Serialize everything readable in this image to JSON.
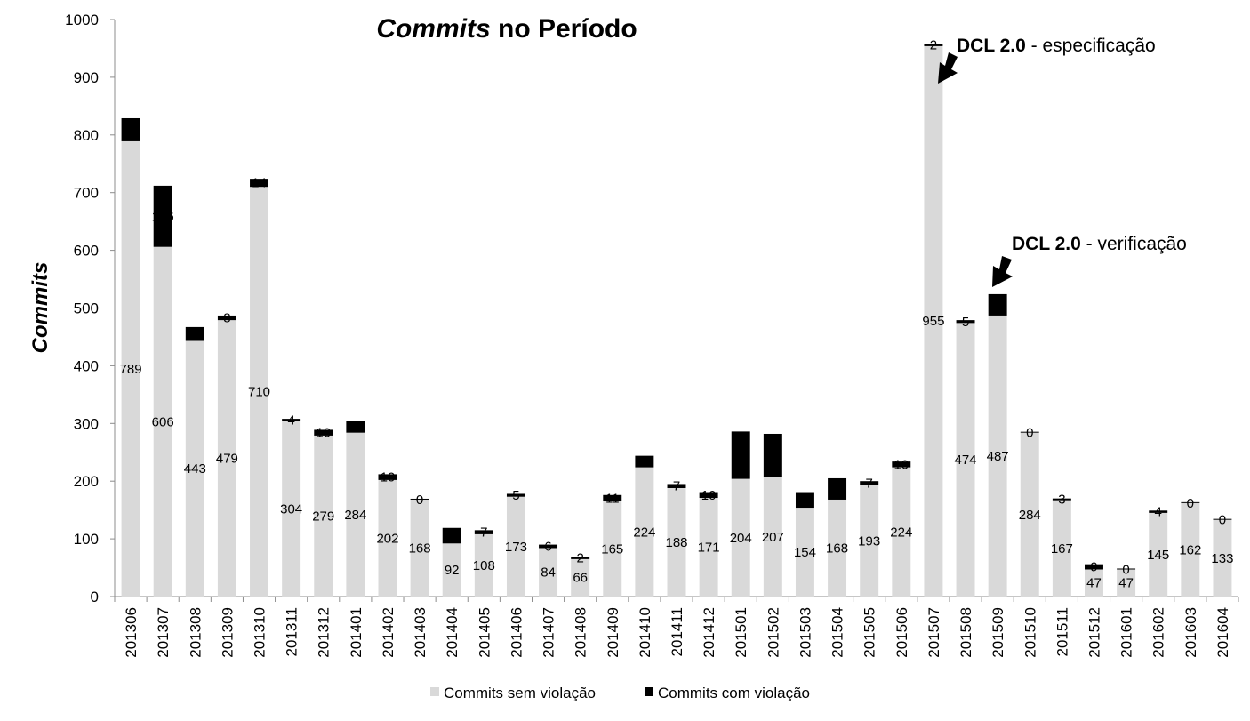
{
  "chart_data": {
    "type": "bar",
    "stacked": true,
    "title_italic": "Commits",
    "title_rest": " no Período",
    "xlabel": "",
    "ylabel": "Commits",
    "ylim": [
      0,
      1000
    ],
    "yticks": [
      "0",
      "100",
      "200",
      "300",
      "400",
      "500",
      "600",
      "700",
      "800",
      "900",
      "1000"
    ],
    "categories": [
      "201306",
      "201307",
      "201308",
      "201309",
      "201310",
      "201311",
      "201312",
      "201401",
      "201402",
      "201403",
      "201404",
      "201405",
      "201406",
      "201407",
      "201408",
      "201409",
      "201410",
      "201411",
      "201412",
      "201501",
      "201502",
      "201503",
      "201504",
      "201505",
      "201506",
      "201507",
      "201508",
      "201509",
      "201510",
      "201511",
      "201512",
      "201601",
      "201602",
      "201603",
      "201604"
    ],
    "series": [
      {
        "name": "Commits sem violação",
        "color": "#d9d9d9",
        "values": [
          789,
          606,
          443,
          479,
          710,
          304,
          279,
          284,
          202,
          168,
          92,
          108,
          173,
          84,
          66,
          165,
          224,
          188,
          171,
          204,
          207,
          154,
          168,
          193,
          224,
          955,
          474,
          487,
          284,
          167,
          47,
          47,
          145,
          162,
          133
        ],
        "labels": [
          "789",
          "606",
          "443",
          "479",
          "710",
          "304",
          "279",
          "284",
          "202",
          "168",
          "92",
          "108",
          "173",
          "84",
          "66",
          "165",
          "224",
          "188",
          "171",
          "204",
          "207",
          "154",
          "168",
          "193",
          "224",
          "955",
          "474",
          "487",
          "284",
          "167",
          "47",
          "47",
          "145",
          "162",
          "133"
        ]
      },
      {
        "name": "Commits com violação",
        "color": "#000000",
        "values": [
          40,
          106,
          24,
          8,
          14,
          4,
          10,
          20,
          10,
          0,
          27,
          7,
          5,
          6,
          2,
          11,
          20,
          7,
          10,
          82,
          75,
          27,
          37,
          7,
          10,
          2,
          5,
          37,
          0,
          3,
          9,
          0,
          4,
          0,
          0
        ],
        "labels": [
          "",
          "106",
          "",
          "8",
          "14",
          "4",
          "10",
          "",
          "10",
          "0",
          "",
          "7",
          "5",
          "6",
          "2",
          "11",
          "",
          "7",
          "10",
          "",
          "",
          "",
          "",
          "7",
          "10",
          "2",
          "5",
          "",
          "0",
          "3",
          "9",
          "0",
          "4",
          "0",
          "0"
        ]
      }
    ],
    "annotations": [
      {
        "bold": "DCL 2.0",
        "rest": " - especificação",
        "category": "201507"
      },
      {
        "bold": "DCL 2.0",
        "rest": " - verificação",
        "category": "201509"
      }
    ]
  }
}
